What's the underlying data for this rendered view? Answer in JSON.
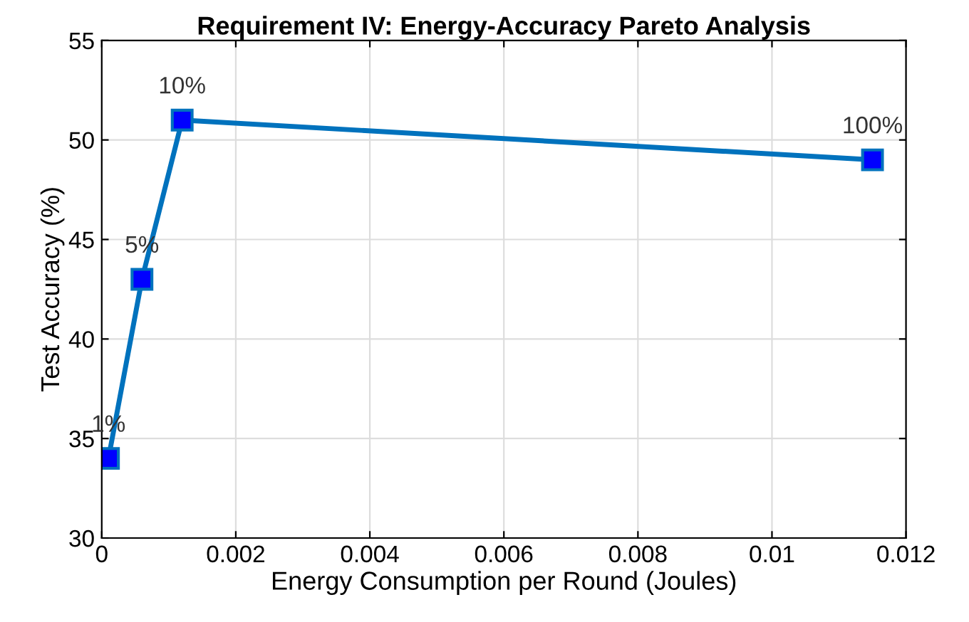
{
  "chart_data": {
    "type": "line",
    "title": "Requirement IV: Energy-Accuracy Pareto Analysis",
    "xlabel": "Energy Consumption per Round (Joules)",
    "ylabel": "Test Accuracy (%)",
    "x": [
      0.0001,
      0.0006,
      0.0012,
      0.0115
    ],
    "series": [
      {
        "color": "#0072bd",
        "values": [
          34,
          43,
          51,
          49
        ]
      }
    ],
    "marker": "square",
    "line_style": "solid",
    "grid": true,
    "xlim": [
      0,
      0.012
    ],
    "xticks": [
      0,
      0.002,
      0.004,
      0.006,
      0.008,
      0.01,
      0.012
    ],
    "ylim": [
      30,
      55
    ],
    "yticks": [
      30,
      35,
      40,
      45,
      50,
      55
    ],
    "annotations": [
      {
        "text": "1%",
        "x": 0.0001,
        "y": 34
      },
      {
        "text": "5%",
        "x": 0.0006,
        "y": 43
      },
      {
        "text": "10%",
        "x": 0.0012,
        "y": 51
      },
      {
        "text": "100%",
        "x": 0.0115,
        "y": 49
      }
    ]
  }
}
